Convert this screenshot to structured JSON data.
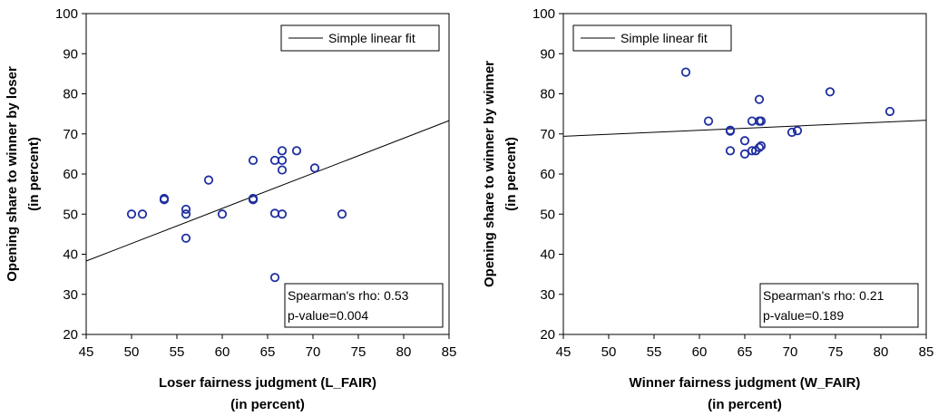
{
  "chart_data": [
    {
      "type": "scatter",
      "xlabel": [
        "Loser fairness judgment (L_FAIR)",
        "(in percent)"
      ],
      "ylabel": [
        "Opening share to winner by loser",
        "(in percent)"
      ],
      "xlim": [
        45,
        85
      ],
      "ylim": [
        20,
        100
      ],
      "xticks": [
        45,
        50,
        55,
        60,
        65,
        70,
        75,
        80,
        85
      ],
      "yticks": [
        20,
        30,
        40,
        50,
        60,
        70,
        80,
        90,
        100
      ],
      "legend": "Simple linear fit",
      "legend_position": "top-right",
      "annotation": [
        "Spearman's rho: 0.53",
        "p-value=0.004"
      ],
      "annotation_position": "bottom-right",
      "marker_color": "#1f2fa0",
      "points": [
        {
          "x": 50,
          "y": 50
        },
        {
          "x": 51.2,
          "y": 50
        },
        {
          "x": 53.6,
          "y": 53.6
        },
        {
          "x": 53.6,
          "y": 53.9
        },
        {
          "x": 56,
          "y": 51.2
        },
        {
          "x": 56,
          "y": 50
        },
        {
          "x": 56,
          "y": 44
        },
        {
          "x": 58.5,
          "y": 58.5
        },
        {
          "x": 60,
          "y": 50
        },
        {
          "x": 63.4,
          "y": 63.4
        },
        {
          "x": 63.4,
          "y": 53.6
        },
        {
          "x": 63.4,
          "y": 53.9
        },
        {
          "x": 65.8,
          "y": 63.4
        },
        {
          "x": 65.8,
          "y": 50.2
        },
        {
          "x": 65.8,
          "y": 34.2
        },
        {
          "x": 66.6,
          "y": 65.8
        },
        {
          "x": 66.6,
          "y": 63.4
        },
        {
          "x": 66.6,
          "y": 61
        },
        {
          "x": 66.6,
          "y": 50
        },
        {
          "x": 68.2,
          "y": 65.8
        },
        {
          "x": 70.2,
          "y": 61.5
        },
        {
          "x": 73.2,
          "y": 50
        }
      ],
      "fit_line": [
        {
          "x": 45,
          "y": 38.3
        },
        {
          "x": 85,
          "y": 73.3
        }
      ]
    },
    {
      "type": "scatter",
      "xlabel": [
        "Winner fairness judgment (W_FAIR)",
        "(in percent)"
      ],
      "ylabel": [
        "Opening share to winner by winner",
        "(in percent)"
      ],
      "xlim": [
        45,
        85
      ],
      "ylim": [
        20,
        100
      ],
      "xticks": [
        45,
        50,
        55,
        60,
        65,
        70,
        75,
        80,
        85
      ],
      "yticks": [
        20,
        30,
        40,
        50,
        60,
        70,
        80,
        90,
        100
      ],
      "legend": "Simple linear fit",
      "legend_position": "top-left",
      "annotation": [
        "Spearman's rho: 0.21",
        "p-value=0.189"
      ],
      "annotation_position": "bottom-right",
      "marker_color": "#1f2fa0",
      "points": [
        {
          "x": 58.5,
          "y": 85.4
        },
        {
          "x": 61,
          "y": 73.2
        },
        {
          "x": 63.4,
          "y": 70.7
        },
        {
          "x": 63.4,
          "y": 70.9
        },
        {
          "x": 63.4,
          "y": 65.8
        },
        {
          "x": 65,
          "y": 68.3
        },
        {
          "x": 65,
          "y": 65
        },
        {
          "x": 65.8,
          "y": 73.2
        },
        {
          "x": 65.8,
          "y": 65.8
        },
        {
          "x": 66.2,
          "y": 65.8
        },
        {
          "x": 66.6,
          "y": 78.6
        },
        {
          "x": 66.6,
          "y": 73.2
        },
        {
          "x": 66.6,
          "y": 66.6
        },
        {
          "x": 66.8,
          "y": 73.2
        },
        {
          "x": 66.8,
          "y": 67
        },
        {
          "x": 70.2,
          "y": 70.4
        },
        {
          "x": 70.8,
          "y": 70.8
        },
        {
          "x": 74.4,
          "y": 80.5
        },
        {
          "x": 81,
          "y": 75.6
        }
      ],
      "fit_line": [
        {
          "x": 45,
          "y": 69.4
        },
        {
          "x": 85,
          "y": 73.4
        }
      ]
    }
  ]
}
